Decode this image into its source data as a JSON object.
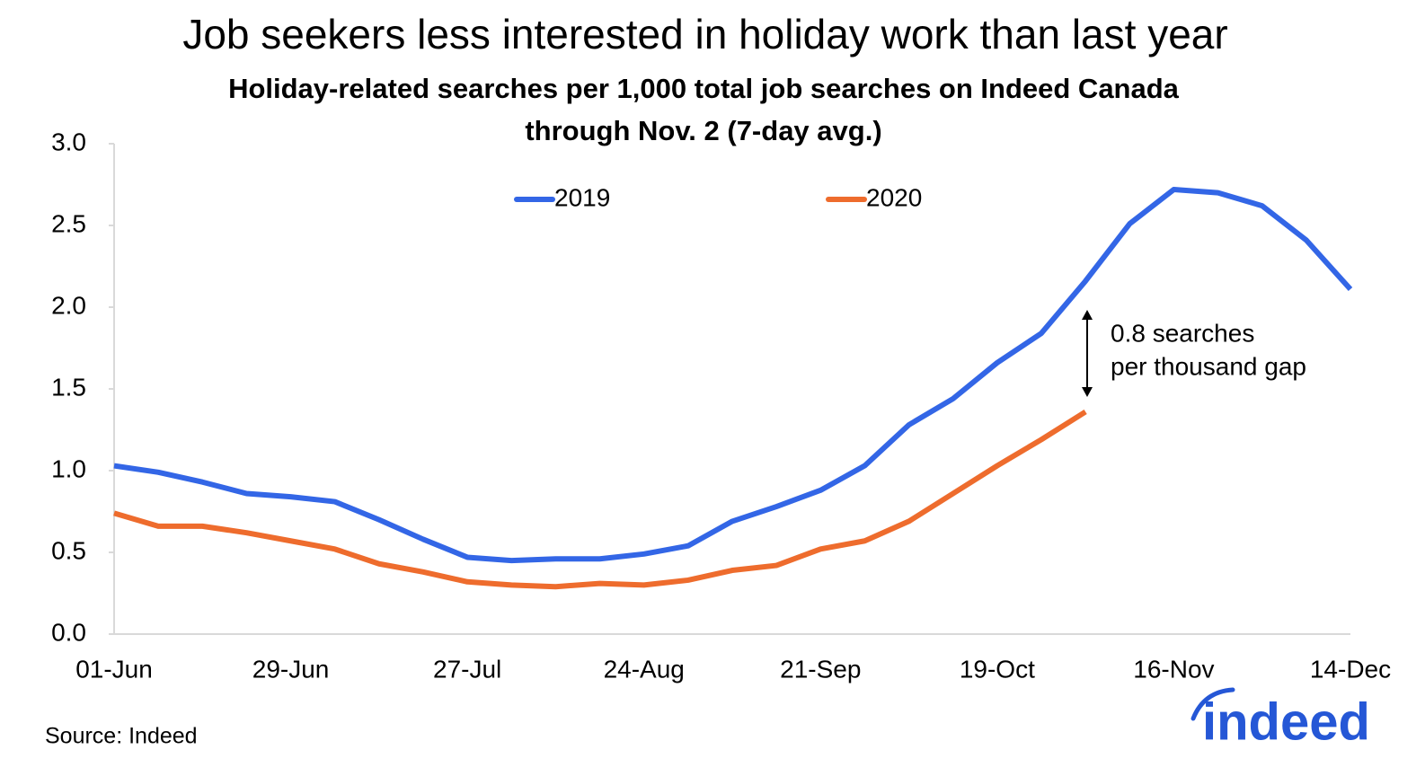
{
  "chart_data": {
    "type": "line",
    "title": "Job seekers less interested in holiday work than last year",
    "subtitle": [
      "Holiday-related searches per 1,000 total job searches on Indeed Canada",
      "through Nov. 2 (7-day avg.)"
    ],
    "categories": [
      "01-Jun",
      null,
      null,
      null,
      "29-Jun",
      null,
      null,
      null,
      "27-Jul",
      null,
      null,
      null,
      "24-Aug",
      null,
      null,
      null,
      "21-Sep",
      null,
      null,
      null,
      "19-Oct",
      null,
      null,
      null,
      "16-Nov",
      null,
      null,
      null,
      "14-Dec"
    ],
    "series": [
      {
        "name": "2019",
        "color": "#3366e6",
        "values": [
          1.03,
          0.99,
          0.93,
          0.86,
          0.84,
          0.81,
          0.7,
          0.58,
          0.47,
          0.45,
          0.46,
          0.46,
          0.49,
          0.54,
          0.69,
          0.78,
          0.88,
          1.03,
          1.28,
          1.44,
          1.66,
          1.84,
          2.16,
          2.51,
          2.72,
          2.7,
          2.62,
          2.41,
          2.11
        ]
      },
      {
        "name": "2020",
        "color": "#ee6c2d",
        "values": [
          0.74,
          0.66,
          0.66,
          0.62,
          0.57,
          0.52,
          0.43,
          0.38,
          0.32,
          0.3,
          0.29,
          0.31,
          0.3,
          0.33,
          0.39,
          0.42,
          0.52,
          0.57,
          0.69,
          0.86,
          1.03,
          1.19,
          1.36,
          null,
          null,
          null,
          null,
          null,
          null
        ]
      }
    ],
    "ylim": [
      0,
      3
    ],
    "yticks": [
      {
        "value": 0,
        "label": "0.0"
      },
      0.5,
      {
        "value": 1,
        "label": "1.0"
      },
      1.5,
      {
        "value": 2,
        "label": "2.0"
      },
      2.5,
      {
        "value": 3,
        "label": "3.0"
      }
    ],
    "annotation": [
      "0.8 searches",
      "per thousand gap"
    ],
    "source": "Source: Indeed",
    "logo": "indeed",
    "legend": "top"
  }
}
